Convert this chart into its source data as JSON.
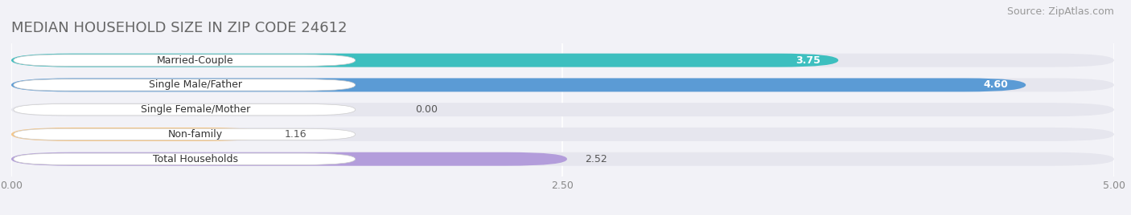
{
  "title": "MEDIAN HOUSEHOLD SIZE IN ZIP CODE 24612",
  "source": "Source: ZipAtlas.com",
  "categories": [
    "Married-Couple",
    "Single Male/Father",
    "Single Female/Mother",
    "Non-family",
    "Total Households"
  ],
  "values": [
    3.75,
    4.6,
    0.0,
    1.16,
    2.52
  ],
  "bar_colors": [
    "#3dbfbf",
    "#5b9bd5",
    "#f48fb1",
    "#f9c784",
    "#b39ddb"
  ],
  "value_label_colors": [
    "white",
    "white",
    "black",
    "black",
    "black"
  ],
  "xlim": [
    0,
    5.0
  ],
  "xticks": [
    0.0,
    2.5,
    5.0
  ],
  "xtick_labels": [
    "0.00",
    "2.50",
    "5.00"
  ],
  "background_color": "#f2f2f7",
  "bar_background_color": "#e6e6ee",
  "title_fontsize": 13,
  "source_fontsize": 9,
  "label_fontsize": 9,
  "value_fontsize": 9,
  "bar_height": 0.55,
  "pill_color": "#ffffff"
}
